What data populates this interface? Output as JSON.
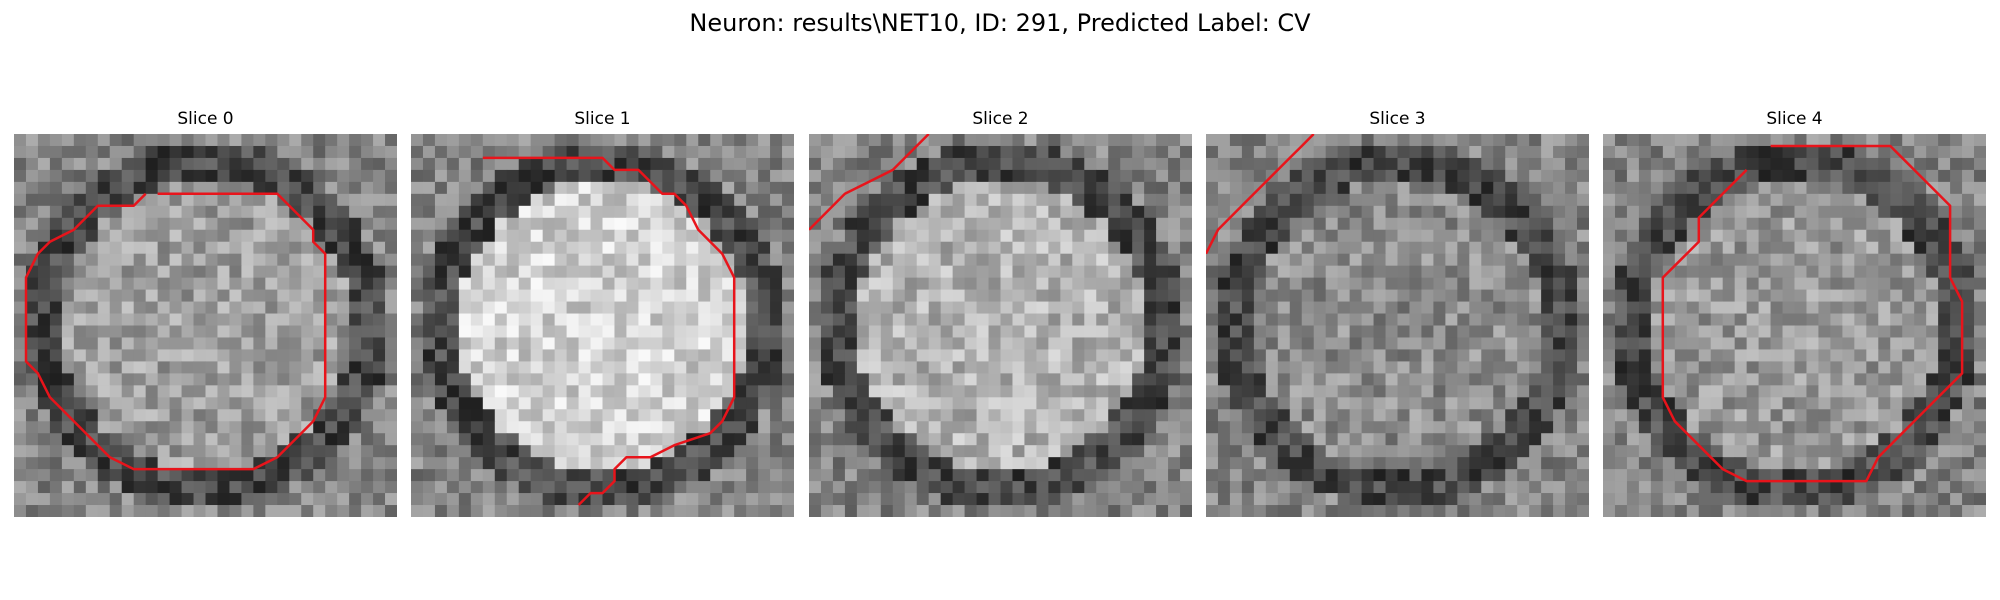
{
  "figure": {
    "title": "Neuron: results\\NET10, ID: 291, Predicted Label: CV"
  },
  "contour_color": "#e8141b",
  "panels": [
    {
      "label": "Slice 0",
      "brightness": 0.62,
      "contour": [
        [
          12,
          5
        ],
        [
          22,
          5
        ],
        [
          25,
          8
        ],
        [
          25,
          9
        ],
        [
          26,
          10
        ],
        [
          26,
          15
        ],
        [
          26,
          22
        ],
        [
          25,
          24
        ],
        [
          24,
          25
        ],
        [
          22,
          27
        ],
        [
          20,
          28
        ],
        [
          10,
          28
        ],
        [
          8,
          27
        ],
        [
          7,
          26
        ],
        [
          6,
          25
        ],
        [
          4,
          23
        ],
        [
          3,
          22
        ],
        [
          2,
          20
        ],
        [
          1,
          19
        ],
        [
          1,
          12
        ],
        [
          2,
          10
        ],
        [
          3,
          9
        ],
        [
          5,
          8
        ],
        [
          6,
          7
        ],
        [
          7,
          6
        ],
        [
          10,
          6
        ],
        [
          11,
          5
        ]
      ]
    },
    {
      "label": "Slice 1",
      "brightness": 0.82,
      "contour": [
        [
          6,
          2
        ],
        [
          16,
          2
        ],
        [
          17,
          3
        ],
        [
          19,
          3
        ],
        [
          21,
          5
        ],
        [
          22,
          5
        ],
        [
          23,
          6
        ],
        [
          24,
          8
        ],
        [
          26,
          10
        ],
        [
          27,
          12
        ],
        [
          27,
          22
        ],
        [
          26,
          24
        ],
        [
          25,
          25
        ],
        [
          22,
          26
        ],
        [
          20,
          27
        ],
        [
          18,
          27
        ],
        [
          17,
          28
        ],
        [
          17,
          29
        ],
        [
          16,
          30
        ],
        [
          15,
          30
        ],
        [
          14,
          31
        ]
      ]
    },
    {
      "label": "Slice 2",
      "brightness": 0.7,
      "contour": [
        [
          0,
          8
        ],
        [
          1,
          7
        ],
        [
          3,
          5
        ],
        [
          5,
          4
        ],
        [
          7,
          3
        ],
        [
          8,
          2
        ],
        [
          9,
          1
        ],
        [
          10,
          0
        ]
      ]
    },
    {
      "label": "Slice 3",
      "brightness": 0.55,
      "contour": [
        [
          0,
          10
        ],
        [
          1,
          8
        ],
        [
          3,
          6
        ],
        [
          4,
          5
        ],
        [
          5,
          4
        ],
        [
          6,
          3
        ],
        [
          7,
          2
        ],
        [
          8,
          1
        ],
        [
          9,
          0
        ]
      ]
    },
    {
      "label": "Slice 4",
      "brightness": 0.6,
      "contour": [
        [
          14,
          1
        ],
        [
          24,
          1
        ],
        [
          26,
          3
        ],
        [
          28,
          5
        ],
        [
          29,
          6
        ],
        [
          29,
          12
        ],
        [
          30,
          14
        ],
        [
          30,
          20
        ],
        [
          29,
          21
        ],
        [
          28,
          22
        ],
        [
          26,
          24
        ],
        [
          25,
          25
        ],
        [
          23,
          27
        ],
        [
          22,
          29
        ],
        [
          12,
          29
        ],
        [
          10,
          28
        ],
        [
          9,
          27
        ],
        [
          7,
          25
        ],
        [
          6,
          24
        ],
        [
          5,
          22
        ],
        [
          5,
          12
        ],
        [
          6,
          11
        ],
        [
          7,
          10
        ],
        [
          8,
          9
        ],
        [
          8,
          7
        ],
        [
          9,
          6
        ],
        [
          10,
          5
        ],
        [
          12,
          3
        ]
      ]
    }
  ]
}
